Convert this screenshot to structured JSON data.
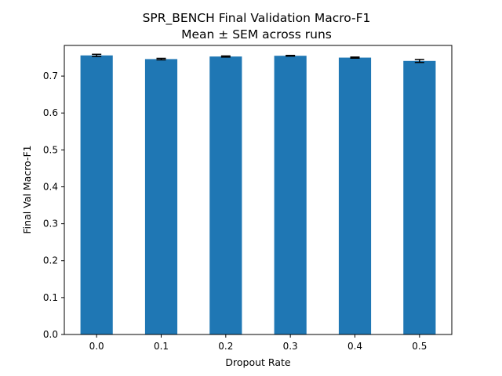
{
  "chart_data": {
    "type": "bar",
    "title": "SPR_BENCH Final Validation Macro-F1",
    "subtitle": "Mean ± SEM across runs",
    "xlabel": "Dropout Rate",
    "ylabel": "Final Val Macro-F1",
    "categories": [
      "0.0",
      "0.1",
      "0.2",
      "0.3",
      "0.4",
      "0.5"
    ],
    "values": [
      0.756,
      0.746,
      0.753,
      0.755,
      0.75,
      0.741
    ],
    "errors": [
      0.003,
      0.002,
      0.0015,
      0.001,
      0.0015,
      0.004
    ],
    "ylim": [
      0,
      0.783
    ],
    "yticks": [
      "0.0",
      "0.1",
      "0.2",
      "0.3",
      "0.4",
      "0.5",
      "0.6",
      "0.7"
    ],
    "grid": false,
    "legend": "none",
    "colors": {
      "bar": "#1f77b4",
      "error_bar": "#000000"
    }
  }
}
